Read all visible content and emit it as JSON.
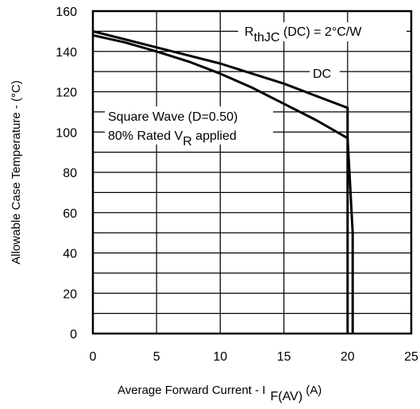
{
  "chart_data": {
    "type": "line",
    "xlabel": {
      "main": "Average Forward Current - I",
      "sub": "F(AV)",
      "unit": " (A)"
    },
    "ylabel": "Allowable Case Temperature - (°C)",
    "xlim": [
      0,
      25
    ],
    "ylim": [
      0,
      160
    ],
    "xticks": [
      "0",
      "5",
      "10",
      "15",
      "20",
      "25"
    ],
    "yticks": [
      "0",
      "20",
      "40",
      "60",
      "80",
      "100",
      "120",
      "140",
      "160"
    ],
    "grid": true,
    "series": [
      {
        "name": "DC",
        "x": [
          0,
          2.5,
          5,
          7.5,
          10,
          12.5,
          15,
          17.5,
          20,
          20,
          20
        ],
        "y": [
          150,
          146,
          142,
          138,
          134,
          129,
          124,
          118,
          112,
          50,
          0
        ]
      },
      {
        "name": "Square Wave (D=0.50) 80% Rated VR applied",
        "x": [
          0,
          2.5,
          5,
          7.5,
          10,
          12.5,
          15,
          17.5,
          20,
          20.4,
          20.4
        ],
        "y": [
          148,
          144.5,
          140,
          135,
          129,
          122,
          114,
          106,
          97,
          50,
          0
        ]
      }
    ],
    "annotations": {
      "rth": {
        "main": "R",
        "sub": "thJC",
        "rest": " (DC) = 2°C/W"
      },
      "dc": "DC",
      "sq_line1": "Square Wave (D=0.50)",
      "sq_line2": {
        "main": "80% Rated V",
        "sub": "R",
        "rest": " applied"
      }
    }
  }
}
